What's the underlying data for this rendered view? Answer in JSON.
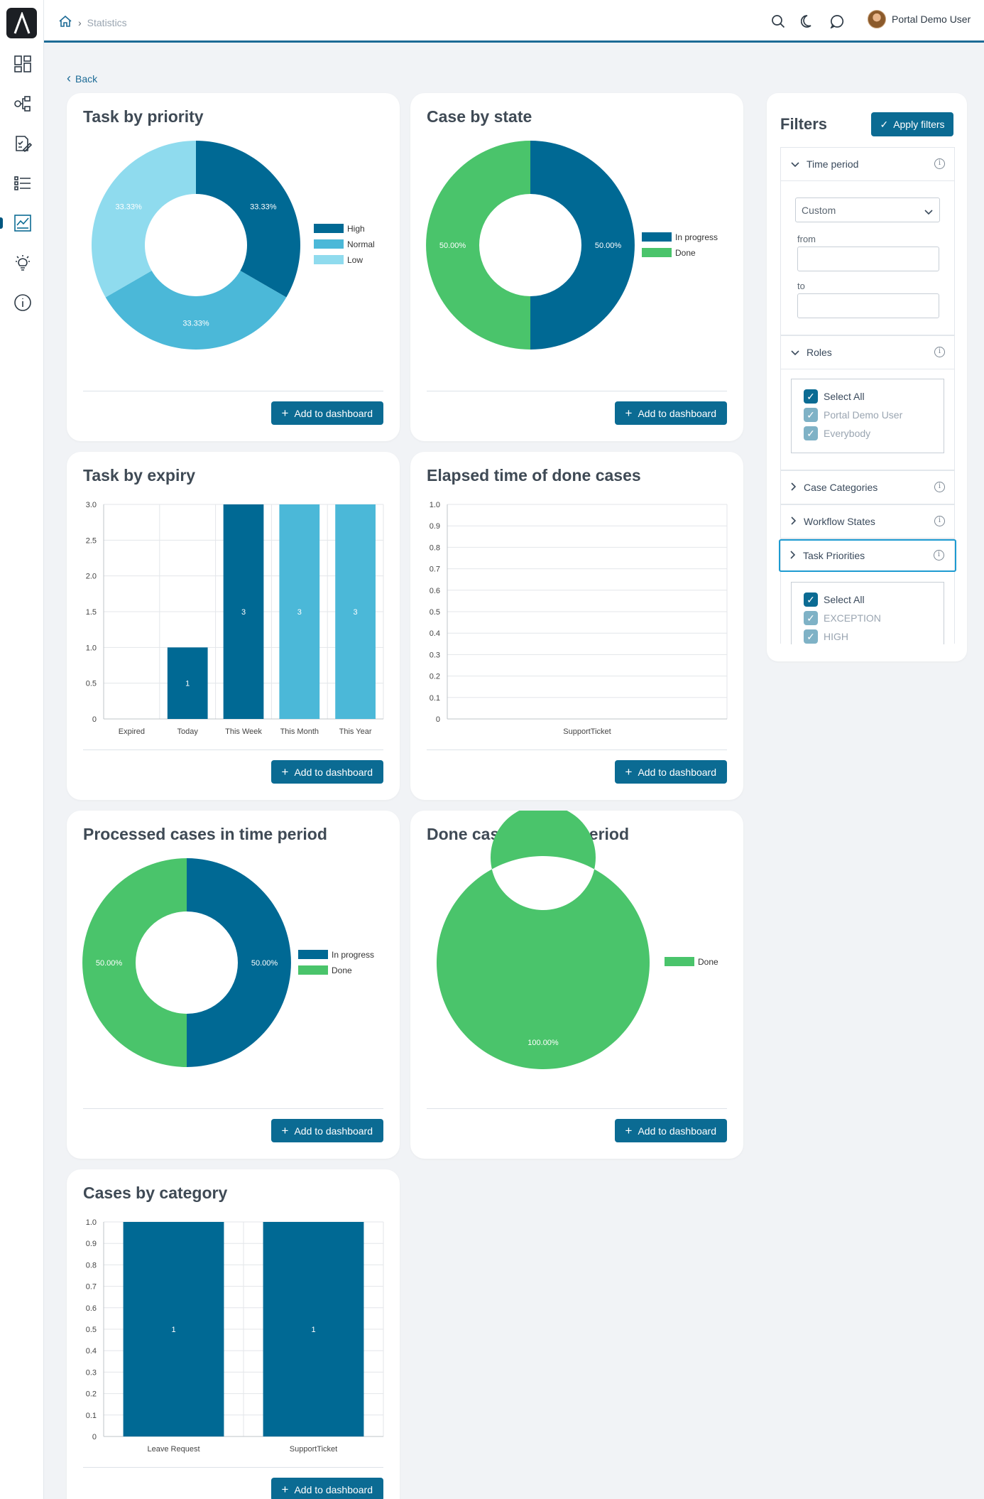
{
  "nav": {
    "breadcrumb": "Statistics",
    "user_name": "Portal Demo User",
    "back_label": "Back",
    "sidebar_icons": [
      "dashboard-icon",
      "processes-icon",
      "tasks-icon",
      "cases-icon",
      "statistics-icon",
      "ideas-icon",
      "info-icon"
    ]
  },
  "common": {
    "add_label": "Add to dashboard"
  },
  "colors": {
    "dark": "#006994",
    "mid": "#4bb8d8",
    "light": "#8fdbee",
    "green": "#4ac46b"
  },
  "charts": {
    "task_priority": {
      "title": "Task by priority"
    },
    "case_state": {
      "title": "Case by state"
    },
    "task_expiry": {
      "title": "Task by expiry"
    },
    "elapsed": {
      "title": "Elapsed time of done cases"
    },
    "processed": {
      "title": "Processed cases in time period"
    },
    "done_cases": {
      "title": "Done cases in time period"
    },
    "category": {
      "title": "Cases by category"
    }
  },
  "chart_data": [
    {
      "type": "pie",
      "title": "Task by priority",
      "labels": [
        "High",
        "Normal",
        "Low"
      ],
      "values": [
        33.33,
        33.33,
        33.33
      ],
      "data_labels": [
        "33.33%",
        "33.33%",
        "33.33%"
      ],
      "legend": "right"
    },
    {
      "type": "pie",
      "title": "Case by state",
      "labels": [
        "In progress",
        "Done"
      ],
      "values": [
        50.0,
        50.0
      ],
      "data_labels": [
        "50.00%",
        "50.00%"
      ],
      "legend": "right"
    },
    {
      "type": "bar",
      "title": "Task by expiry",
      "categories": [
        "Expired",
        "Today",
        "This Week",
        "This Month",
        "This Year"
      ],
      "values": [
        0,
        1,
        3,
        3,
        3
      ],
      "data_labels": [
        "",
        "1",
        "3",
        "3",
        "3"
      ],
      "ylim": [
        0,
        3
      ],
      "yticks": [
        "3.0",
        "2.5",
        "2.0",
        "1.5",
        "1.0",
        "0.5",
        "0"
      ],
      "grid": true
    },
    {
      "type": "bar",
      "title": "Elapsed time of done cases",
      "categories": [
        "SupportTicket"
      ],
      "values": [
        0
      ],
      "ylim": [
        0,
        1
      ],
      "yticks": [
        "1.0",
        "0.9",
        "0.8",
        "0.7",
        "0.6",
        "0.5",
        "0.4",
        "0.3",
        "0.2",
        "0.1",
        "0"
      ],
      "grid": true
    },
    {
      "type": "pie",
      "title": "Processed cases in time period",
      "labels": [
        "In progress",
        "Done"
      ],
      "values": [
        50.0,
        50.0
      ],
      "data_labels": [
        "50.00%",
        "50.00%"
      ],
      "legend": "right"
    },
    {
      "type": "pie",
      "title": "Done cases in time period",
      "labels": [
        "Done"
      ],
      "values": [
        100.0
      ],
      "data_labels": [
        "100.00%"
      ],
      "legend": "right"
    },
    {
      "type": "bar",
      "title": "Cases by category",
      "categories": [
        "Leave Request",
        "SupportTicket"
      ],
      "values": [
        1,
        1
      ],
      "data_labels": [
        "1",
        "1"
      ],
      "ylim": [
        0,
        1
      ],
      "yticks": [
        "1.0",
        "0.9",
        "0.8",
        "0.7",
        "0.6",
        "0.5",
        "0.4",
        "0.3",
        "0.2",
        "0.1",
        "0"
      ],
      "grid": true
    }
  ],
  "filters": {
    "title": "Filters",
    "apply_label": "Apply filters",
    "time_period": {
      "label": "Time period",
      "selected": "Custom",
      "from_label": "from",
      "to_label": "to"
    },
    "roles": {
      "label": "Roles",
      "items": [
        "Select All",
        "Portal Demo User",
        "Everybody"
      ]
    },
    "case_categories": {
      "label": "Case Categories"
    },
    "workflow_states": {
      "label": "Workflow States"
    },
    "task_priorities": {
      "label": "Task Priorities",
      "items": [
        "Select All",
        "EXCEPTION",
        "HIGH"
      ]
    }
  }
}
